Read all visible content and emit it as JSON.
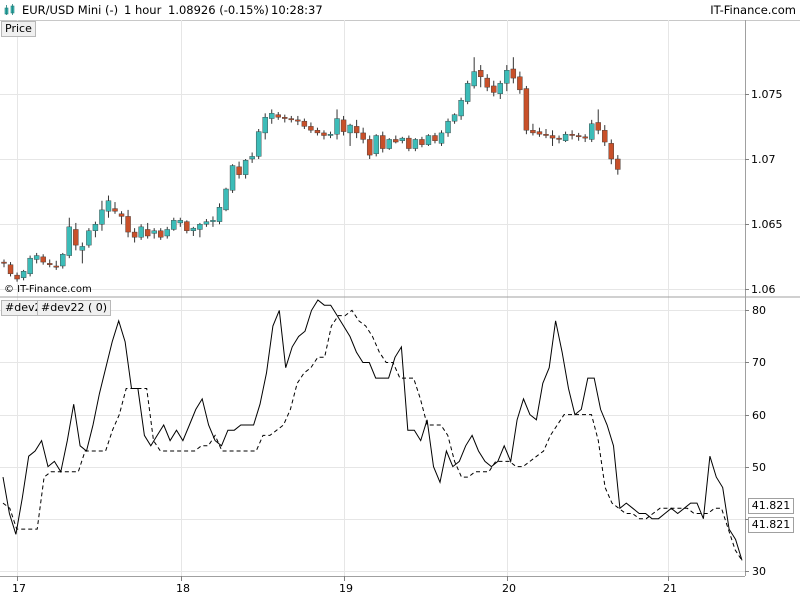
{
  "header": {
    "symbol": "EUR/USD Mini (-)",
    "timeframe": "1 hour",
    "price_change": "1.08926 (-0.15%)",
    "time": "10:28:37",
    "brand": "IT-Finance.com"
  },
  "panels": {
    "price_tab": "Price",
    "indicator_tab_1": "#dev2",
    "indicator_tab_2": "#dev22 ( 0)",
    "copyright": "© IT-Finance.com",
    "indicator_value_1": "41.821",
    "indicator_value_2": "41.821"
  },
  "colors": {
    "up_candle": "#3cbcb8",
    "down_candle": "#c8502a",
    "grid": "#e6e6e6",
    "line": "#000000"
  },
  "chart_data": [
    {
      "type": "candlestick",
      "title": "Price",
      "ylim": [
        1.0595,
        1.0805
      ],
      "yticks": [
        1.06,
        1.065,
        1.07,
        1.075
      ],
      "ytick_labels": [
        "1.06",
        "1.065",
        "1.07",
        "1.075"
      ],
      "x_tick_labels": [
        "17",
        "18",
        "19",
        "20",
        "21"
      ],
      "grid": true,
      "candles": [
        [
          1.0621,
          1.0623,
          1.0617,
          1.062
        ],
        [
          1.0619,
          1.0621,
          1.061,
          1.0612
        ],
        [
          1.0611,
          1.0613,
          1.0606,
          1.0608
        ],
        [
          1.0609,
          1.0615,
          1.0607,
          1.0614
        ],
        [
          1.0612,
          1.0626,
          1.061,
          1.0624
        ],
        [
          1.0623,
          1.0628,
          1.062,
          1.0626
        ],
        [
          1.0625,
          1.0627,
          1.0619,
          1.0621
        ],
        [
          1.062,
          1.0623,
          1.0617,
          1.0619
        ],
        [
          1.0618,
          1.0622,
          1.0615,
          1.0617
        ],
        [
          1.0618,
          1.0628,
          1.0616,
          1.0627
        ],
        [
          1.0626,
          1.0655,
          1.0624,
          1.0648
        ],
        [
          1.0646,
          1.0651,
          1.063,
          1.0634
        ],
        [
          1.063,
          1.0636,
          1.062,
          1.0633
        ],
        [
          1.0634,
          1.0647,
          1.0632,
          1.0645
        ],
        [
          1.0645,
          1.0652,
          1.064,
          1.065
        ],
        [
          1.065,
          1.0668,
          1.0645,
          1.0661
        ],
        [
          1.066,
          1.0672,
          1.0655,
          1.0668
        ],
        [
          1.0662,
          1.0667,
          1.0658,
          1.066
        ],
        [
          1.0658,
          1.066,
          1.065,
          1.0656
        ],
        [
          1.0656,
          1.0661,
          1.064,
          1.0644
        ],
        [
          1.0644,
          1.0647,
          1.0636,
          1.064
        ],
        [
          1.064,
          1.065,
          1.0638,
          1.0648
        ],
        [
          1.0646,
          1.0651,
          1.0639,
          1.0641
        ],
        [
          1.0643,
          1.0647,
          1.0639,
          1.0645
        ],
        [
          1.0645,
          1.0647,
          1.0638,
          1.064
        ],
        [
          1.0641,
          1.0648,
          1.0639,
          1.0646
        ],
        [
          1.0646,
          1.0655,
          1.0645,
          1.0653
        ],
        [
          1.0651,
          1.0655,
          1.0648,
          1.0653
        ],
        [
          1.0652,
          1.0653,
          1.0643,
          1.0645
        ],
        [
          1.0645,
          1.0648,
          1.0641,
          1.0647
        ],
        [
          1.0646,
          1.0651,
          1.064,
          1.065
        ],
        [
          1.065,
          1.0654,
          1.0648,
          1.0652
        ],
        [
          1.0652,
          1.0656,
          1.0648,
          1.0653
        ],
        [
          1.0652,
          1.0666,
          1.065,
          1.0663
        ],
        [
          1.0661,
          1.0678,
          1.066,
          1.0677
        ],
        [
          1.0676,
          1.0696,
          1.0674,
          1.0695
        ],
        [
          1.0694,
          1.0698,
          1.0685,
          1.0688
        ],
        [
          1.0688,
          1.07,
          1.0685,
          1.0699
        ],
        [
          1.07,
          1.0705,
          1.0697,
          1.0702
        ],
        [
          1.0702,
          1.0723,
          1.07,
          1.0721
        ],
        [
          1.072,
          1.0735,
          1.0715,
          1.0732
        ],
        [
          1.0731,
          1.0738,
          1.0727,
          1.0735
        ],
        [
          1.0734,
          1.0736,
          1.073,
          1.0732
        ],
        [
          1.0732,
          1.0734,
          1.0728,
          1.0731
        ],
        [
          1.0731,
          1.0733,
          1.0728,
          1.073
        ],
        [
          1.073,
          1.0733,
          1.0726,
          1.0729
        ],
        [
          1.0729,
          1.0731,
          1.0723,
          1.0725
        ],
        [
          1.0725,
          1.0728,
          1.072,
          1.0722
        ],
        [
          1.0722,
          1.0724,
          1.0718,
          1.072
        ],
        [
          1.072,
          1.0722,
          1.0715,
          1.0718
        ],
        [
          1.0718,
          1.0721,
          1.0716,
          1.0719
        ],
        [
          1.0719,
          1.0738,
          1.0715,
          1.0731
        ],
        [
          1.073,
          1.0733,
          1.0718,
          1.0721
        ],
        [
          1.072,
          1.0727,
          1.071,
          1.0726
        ],
        [
          1.0725,
          1.073,
          1.0716,
          1.072
        ],
        [
          1.072,
          1.0724,
          1.0712,
          1.0715
        ],
        [
          1.0715,
          1.0718,
          1.07,
          1.0703
        ],
        [
          1.0704,
          1.0719,
          1.0702,
          1.0718
        ],
        [
          1.0718,
          1.0721,
          1.0705,
          1.0708
        ],
        [
          1.0708,
          1.0716,
          1.0707,
          1.0715
        ],
        [
          1.0715,
          1.0718,
          1.0712,
          1.0713
        ],
        [
          1.0714,
          1.0717,
          1.0712,
          1.0716
        ],
        [
          1.0716,
          1.0718,
          1.0706,
          1.0708
        ],
        [
          1.0708,
          1.0716,
          1.0706,
          1.0715
        ],
        [
          1.0715,
          1.0717,
          1.0709,
          1.0711
        ],
        [
          1.0711,
          1.0719,
          1.071,
          1.0718
        ],
        [
          1.0718,
          1.072,
          1.0712,
          1.0714
        ],
        [
          1.0712,
          1.0722,
          1.071,
          1.072
        ],
        [
          1.072,
          1.0731,
          1.0717,
          1.0729
        ],
        [
          1.0729,
          1.0735,
          1.0727,
          1.0734
        ],
        [
          1.0733,
          1.0747,
          1.073,
          1.0745
        ],
        [
          1.0744,
          1.076,
          1.0742,
          1.0758
        ],
        [
          1.0756,
          1.0778,
          1.0754,
          1.0767
        ],
        [
          1.0768,
          1.0772,
          1.0755,
          1.0763
        ],
        [
          1.0762,
          1.0765,
          1.0752,
          1.0755
        ],
        [
          1.0756,
          1.076,
          1.0748,
          1.0751
        ],
        [
          1.075,
          1.076,
          1.0746,
          1.0758
        ],
        [
          1.0758,
          1.0772,
          1.0752,
          1.0768
        ],
        [
          1.0769,
          1.0778,
          1.0758,
          1.0762
        ],
        [
          1.0763,
          1.0767,
          1.075,
          1.0753
        ],
        [
          1.0754,
          1.0756,
          1.0719,
          1.0722
        ],
        [
          1.0722,
          1.0727,
          1.0718,
          1.072
        ],
        [
          1.0721,
          1.0724,
          1.0717,
          1.0719
        ],
        [
          1.0719,
          1.0723,
          1.0716,
          1.0718
        ],
        [
          1.0718,
          1.0722,
          1.071,
          1.0716
        ],
        [
          1.0716,
          1.0718,
          1.0712,
          1.0715
        ],
        [
          1.0714,
          1.0721,
          1.0713,
          1.0719
        ],
        [
          1.0719,
          1.0722,
          1.0715,
          1.0718
        ],
        [
          1.0718,
          1.072,
          1.0714,
          1.0717
        ],
        [
          1.0717,
          1.0719,
          1.0713,
          1.0716
        ],
        [
          1.0715,
          1.073,
          1.0713,
          1.0727
        ],
        [
          1.0728,
          1.0738,
          1.0719,
          1.0722
        ],
        [
          1.0722,
          1.0726,
          1.071,
          1.0713
        ],
        [
          1.0712,
          1.0715,
          1.0696,
          1.07
        ],
        [
          1.07,
          1.0703,
          1.0688,
          1.0692
        ]
      ]
    },
    {
      "type": "line",
      "title": "#dev2 / #dev22 ( 0)",
      "ylim": [
        29,
        82
      ],
      "yticks": [
        30,
        40,
        50,
        60,
        70,
        80
      ],
      "ytick_labels": [
        "30",
        "",
        "50",
        "60",
        "70",
        "80"
      ],
      "x_tick_labels": [
        "17",
        "18",
        "19",
        "20",
        "21"
      ],
      "grid": true,
      "series": [
        {
          "values": [
            48,
            41,
            37,
            44,
            52,
            53,
            55,
            50,
            51,
            49,
            55,
            62,
            54,
            53,
            58,
            64,
            69,
            74,
            78,
            74,
            65,
            65,
            56,
            54,
            56,
            58,
            55,
            57,
            55,
            58,
            61,
            63,
            58,
            55,
            54,
            57,
            57,
            58,
            58,
            58,
            62,
            68,
            77,
            80,
            69,
            73,
            75,
            76,
            80,
            82,
            81,
            81,
            79,
            77,
            75,
            72,
            70,
            70,
            67,
            67,
            67,
            71,
            73,
            57,
            57,
            55,
            59,
            50,
            47,
            53,
            50,
            51,
            54,
            56,
            53,
            51,
            50,
            51,
            54,
            51,
            59,
            63,
            60,
            59,
            66,
            69,
            78,
            72,
            65,
            60,
            61,
            67,
            67,
            61,
            58,
            54,
            42,
            43,
            42,
            41,
            41,
            40,
            40,
            41,
            42,
            41,
            42,
            43,
            43,
            40,
            52,
            48,
            46,
            38,
            36,
            32
          ]
        },
        {
          "values": [
            43,
            42,
            38,
            38,
            38,
            38,
            48,
            49,
            49,
            49,
            49,
            49,
            53,
            53,
            53,
            53,
            57,
            60,
            65,
            65,
            65,
            65,
            55,
            53,
            53,
            53,
            53,
            53,
            53,
            54,
            54,
            56,
            53,
            53,
            53,
            53,
            53,
            53,
            56,
            56,
            57,
            58,
            61,
            66,
            68,
            69,
            71,
            71,
            77,
            79,
            79,
            80,
            78,
            77,
            75,
            72,
            70,
            70,
            67,
            67,
            67,
            63,
            58,
            58,
            58,
            56,
            51,
            48,
            48,
            49,
            49,
            49,
            51,
            51,
            51,
            50,
            50,
            51,
            52,
            53,
            56,
            58,
            60,
            60,
            60,
            60,
            60,
            55,
            46,
            43,
            42,
            41,
            41,
            40,
            40,
            41,
            42,
            42,
            42,
            42,
            42,
            41,
            41,
            41,
            42,
            42,
            38,
            34,
            32
          ]
        }
      ]
    }
  ]
}
